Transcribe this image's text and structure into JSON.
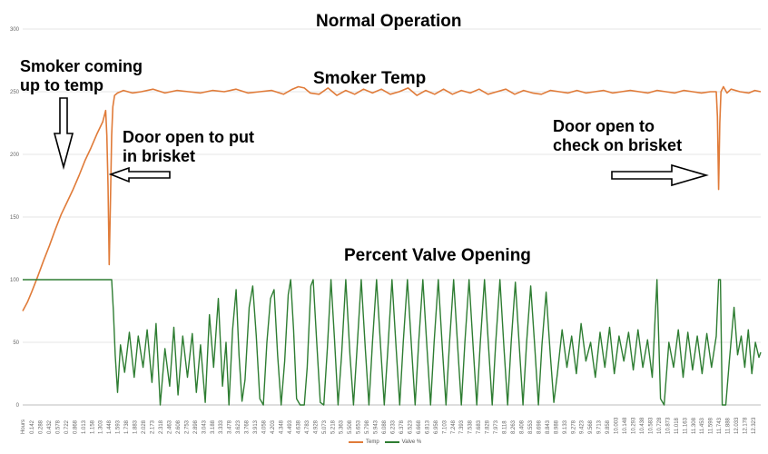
{
  "chart_data": {
    "type": "line",
    "title": "Normal Operation",
    "xlabel": "Hours",
    "ylabel": "",
    "ylim": [
      0,
      300
    ],
    "yticks": [
      0,
      50,
      100,
      150,
      200,
      250,
      300
    ],
    "grid": true,
    "legend_placement": "bottom",
    "x_tick_labels": [
      "0.142",
      "0.288",
      "0.432",
      "0.578",
      "0.722",
      "0.868",
      "1.013",
      "1.158",
      "1.303",
      "1.448",
      "1.593",
      "1.738",
      "1.883",
      "2.028",
      "2.173",
      "2.318",
      "2.463",
      "2.608",
      "2.753",
      "2.898",
      "3.043",
      "3.188",
      "3.333",
      "3.478",
      "3.623",
      "3.768",
      "3.913",
      "4.058",
      "4.203",
      "4.348",
      "4.493",
      "4.638",
      "4.783",
      "4.928",
      "5.073",
      "5.218",
      "5.363",
      "5.508",
      "5.653",
      "5.798",
      "5.943",
      "6.088",
      "6.233",
      "6.378",
      "6.523",
      "6.668",
      "6.813",
      "6.958",
      "7.103",
      "7.248",
      "7.393",
      "7.538",
      "7.683",
      "7.828",
      "7.973",
      "8.118",
      "8.263",
      "8.408",
      "8.553",
      "8.698",
      "8.843",
      "8.988",
      "9.133",
      "9.278",
      "9.423",
      "9.568",
      "9.713",
      "9.858",
      "10.003",
      "10.148",
      "10.293",
      "10.438",
      "10.583",
      "10.728",
      "10.873",
      "11.018",
      "11.163",
      "11.308",
      "11.453",
      "11.598",
      "11.743",
      "11.888",
      "12.033",
      "12.178",
      "12.323"
    ],
    "x_range": [
      0,
      12.45
    ],
    "series": [
      {
        "name": "Temp",
        "color": "#e07b39",
        "points": [
          [
            0.0,
            75
          ],
          [
            0.08,
            82
          ],
          [
            0.15,
            90
          ],
          [
            0.25,
            102
          ],
          [
            0.35,
            115
          ],
          [
            0.45,
            127
          ],
          [
            0.55,
            140
          ],
          [
            0.65,
            152
          ],
          [
            0.75,
            162
          ],
          [
            0.85,
            172
          ],
          [
            0.95,
            183
          ],
          [
            1.05,
            195
          ],
          [
            1.15,
            205
          ],
          [
            1.25,
            216
          ],
          [
            1.35,
            226
          ],
          [
            1.4,
            235
          ],
          [
            1.42,
            215
          ],
          [
            1.44,
            175
          ],
          [
            1.46,
            112
          ],
          [
            1.48,
            160
          ],
          [
            1.5,
            215
          ],
          [
            1.52,
            238
          ],
          [
            1.55,
            247
          ],
          [
            1.6,
            249
          ],
          [
            1.7,
            251
          ],
          [
            1.85,
            249
          ],
          [
            2.0,
            250
          ],
          [
            2.2,
            252
          ],
          [
            2.4,
            249
          ],
          [
            2.6,
            251
          ],
          [
            2.8,
            250
          ],
          [
            3.0,
            249
          ],
          [
            3.2,
            251
          ],
          [
            3.4,
            250
          ],
          [
            3.6,
            252
          ],
          [
            3.8,
            249
          ],
          [
            4.0,
            250
          ],
          [
            4.2,
            251
          ],
          [
            4.4,
            248
          ],
          [
            4.55,
            252
          ],
          [
            4.65,
            254
          ],
          [
            4.75,
            253
          ],
          [
            4.85,
            249
          ],
          [
            5.0,
            248
          ],
          [
            5.15,
            253
          ],
          [
            5.3,
            247
          ],
          [
            5.45,
            251
          ],
          [
            5.6,
            248
          ],
          [
            5.75,
            252
          ],
          [
            5.9,
            249
          ],
          [
            6.05,
            252
          ],
          [
            6.2,
            248
          ],
          [
            6.35,
            250
          ],
          [
            6.5,
            253
          ],
          [
            6.65,
            247
          ],
          [
            6.8,
            251
          ],
          [
            6.95,
            248
          ],
          [
            7.1,
            252
          ],
          [
            7.25,
            248
          ],
          [
            7.4,
            251
          ],
          [
            7.55,
            249
          ],
          [
            7.7,
            252
          ],
          [
            7.85,
            248
          ],
          [
            8.0,
            250
          ],
          [
            8.15,
            252
          ],
          [
            8.3,
            248
          ],
          [
            8.45,
            251
          ],
          [
            8.6,
            249
          ],
          [
            8.75,
            248
          ],
          [
            8.9,
            251
          ],
          [
            9.05,
            250
          ],
          [
            9.2,
            249
          ],
          [
            9.35,
            251
          ],
          [
            9.5,
            249
          ],
          [
            9.65,
            250
          ],
          [
            9.8,
            251
          ],
          [
            9.95,
            249
          ],
          [
            10.1,
            250
          ],
          [
            10.25,
            251
          ],
          [
            10.4,
            250
          ],
          [
            10.55,
            249
          ],
          [
            10.7,
            251
          ],
          [
            10.85,
            250
          ],
          [
            11.0,
            249
          ],
          [
            11.15,
            251
          ],
          [
            11.3,
            250
          ],
          [
            11.45,
            249
          ],
          [
            11.6,
            250
          ],
          [
            11.7,
            250
          ],
          [
            11.72,
            230
          ],
          [
            11.74,
            172
          ],
          [
            11.76,
            225
          ],
          [
            11.78,
            250
          ],
          [
            11.82,
            254
          ],
          [
            11.88,
            249
          ],
          [
            11.95,
            252
          ],
          [
            12.1,
            250
          ],
          [
            12.25,
            249
          ],
          [
            12.35,
            251
          ],
          [
            12.45,
            250
          ]
        ]
      },
      {
        "name": "Valve %",
        "color": "#2e7d32",
        "points": [
          [
            0.0,
            100
          ],
          [
            1.5,
            100
          ],
          [
            1.53,
            75
          ],
          [
            1.56,
            40
          ],
          [
            1.6,
            10
          ],
          [
            1.65,
            48
          ],
          [
            1.72,
            26
          ],
          [
            1.8,
            58
          ],
          [
            1.88,
            22
          ],
          [
            1.95,
            55
          ],
          [
            2.03,
            30
          ],
          [
            2.1,
            60
          ],
          [
            2.18,
            18
          ],
          [
            2.25,
            65
          ],
          [
            2.32,
            0
          ],
          [
            2.4,
            45
          ],
          [
            2.48,
            15
          ],
          [
            2.55,
            62
          ],
          [
            2.62,
            8
          ],
          [
            2.7,
            55
          ],
          [
            2.78,
            22
          ],
          [
            2.86,
            57
          ],
          [
            2.93,
            10
          ],
          [
            3.0,
            48
          ],
          [
            3.08,
            2
          ],
          [
            3.15,
            72
          ],
          [
            3.22,
            30
          ],
          [
            3.3,
            85
          ],
          [
            3.37,
            15
          ],
          [
            3.43,
            50
          ],
          [
            3.48,
            0
          ],
          [
            3.54,
            60
          ],
          [
            3.6,
            92
          ],
          [
            3.65,
            40
          ],
          [
            3.7,
            3
          ],
          [
            3.75,
            20
          ],
          [
            3.82,
            78
          ],
          [
            3.88,
            95
          ],
          [
            3.94,
            55
          ],
          [
            4.0,
            5
          ],
          [
            4.06,
            0
          ],
          [
            4.12,
            50
          ],
          [
            4.18,
            85
          ],
          [
            4.24,
            92
          ],
          [
            4.3,
            40
          ],
          [
            4.36,
            0
          ],
          [
            4.42,
            35
          ],
          [
            4.48,
            88
          ],
          [
            4.52,
            100
          ],
          [
            4.57,
            60
          ],
          [
            4.62,
            5
          ],
          [
            4.68,
            0
          ],
          [
            4.75,
            0
          ],
          [
            4.8,
            30
          ],
          [
            4.86,
            95
          ],
          [
            4.9,
            100
          ],
          [
            4.96,
            50
          ],
          [
            5.02,
            2
          ],
          [
            5.08,
            0
          ],
          [
            5.14,
            45
          ],
          [
            5.2,
            100
          ],
          [
            5.26,
            52
          ],
          [
            5.32,
            0
          ],
          [
            5.38,
            40
          ],
          [
            5.45,
            100
          ],
          [
            5.52,
            40
          ],
          [
            5.58,
            0
          ],
          [
            5.64,
            45
          ],
          [
            5.71,
            100
          ],
          [
            5.78,
            45
          ],
          [
            5.84,
            0
          ],
          [
            5.9,
            50
          ],
          [
            5.97,
            100
          ],
          [
            6.04,
            45
          ],
          [
            6.1,
            0
          ],
          [
            6.16,
            45
          ],
          [
            6.23,
            100
          ],
          [
            6.3,
            45
          ],
          [
            6.36,
            0
          ],
          [
            6.42,
            50
          ],
          [
            6.49,
            100
          ],
          [
            6.56,
            45
          ],
          [
            6.62,
            0
          ],
          [
            6.68,
            50
          ],
          [
            6.75,
            100
          ],
          [
            6.82,
            45
          ],
          [
            6.88,
            0
          ],
          [
            6.94,
            50
          ],
          [
            7.01,
            100
          ],
          [
            7.08,
            45
          ],
          [
            7.14,
            0
          ],
          [
            7.2,
            50
          ],
          [
            7.27,
            100
          ],
          [
            7.34,
            45
          ],
          [
            7.4,
            0
          ],
          [
            7.46,
            50
          ],
          [
            7.53,
            100
          ],
          [
            7.6,
            45
          ],
          [
            7.66,
            0
          ],
          [
            7.72,
            50
          ],
          [
            7.79,
            100
          ],
          [
            7.86,
            45
          ],
          [
            7.92,
            0
          ],
          [
            7.98,
            50
          ],
          [
            8.05,
            100
          ],
          [
            8.12,
            45
          ],
          [
            8.18,
            0
          ],
          [
            8.24,
            50
          ],
          [
            8.31,
            98
          ],
          [
            8.38,
            45
          ],
          [
            8.44,
            0
          ],
          [
            8.5,
            50
          ],
          [
            8.57,
            95
          ],
          [
            8.64,
            45
          ],
          [
            8.7,
            0
          ],
          [
            8.76,
            48
          ],
          [
            8.83,
            90
          ],
          [
            8.9,
            40
          ],
          [
            8.96,
            2
          ],
          [
            9.02,
            25
          ],
          [
            9.1,
            60
          ],
          [
            9.18,
            30
          ],
          [
            9.26,
            55
          ],
          [
            9.34,
            25
          ],
          [
            9.42,
            65
          ],
          [
            9.5,
            35
          ],
          [
            9.58,
            50
          ],
          [
            9.66,
            22
          ],
          [
            9.74,
            58
          ],
          [
            9.82,
            30
          ],
          [
            9.9,
            62
          ],
          [
            9.98,
            25
          ],
          [
            10.06,
            55
          ],
          [
            10.14,
            35
          ],
          [
            10.22,
            58
          ],
          [
            10.3,
            28
          ],
          [
            10.38,
            60
          ],
          [
            10.46,
            30
          ],
          [
            10.54,
            52
          ],
          [
            10.62,
            22
          ],
          [
            10.7,
            100
          ],
          [
            10.76,
            5
          ],
          [
            10.82,
            0
          ],
          [
            10.9,
            50
          ],
          [
            10.98,
            30
          ],
          [
            11.06,
            60
          ],
          [
            11.14,
            22
          ],
          [
            11.22,
            58
          ],
          [
            11.3,
            28
          ],
          [
            11.38,
            55
          ],
          [
            11.46,
            25
          ],
          [
            11.54,
            57
          ],
          [
            11.62,
            30
          ],
          [
            11.7,
            55
          ],
          [
            11.74,
            100
          ],
          [
            11.77,
            100
          ],
          [
            11.8,
            0
          ],
          [
            11.86,
            0
          ],
          [
            11.92,
            35
          ],
          [
            12.0,
            78
          ],
          [
            12.06,
            40
          ],
          [
            12.12,
            55
          ],
          [
            12.18,
            30
          ],
          [
            12.24,
            60
          ],
          [
            12.3,
            25
          ],
          [
            12.36,
            50
          ],
          [
            12.42,
            38
          ],
          [
            12.45,
            42
          ]
        ]
      }
    ]
  },
  "annotations": {
    "series1_label": "Smoker Temp",
    "series2_label": "Percent Valve Opening",
    "coming_up": "Smoker coming\nup to temp",
    "door_open_1": "Door open to put\nin brisket",
    "door_open_2": "Door open to\ncheck on brisket"
  },
  "legend": {
    "items": [
      {
        "label": "Temp",
        "color": "#e07b39"
      },
      {
        "label": "Valve %",
        "color": "#2e7d32"
      }
    ]
  }
}
